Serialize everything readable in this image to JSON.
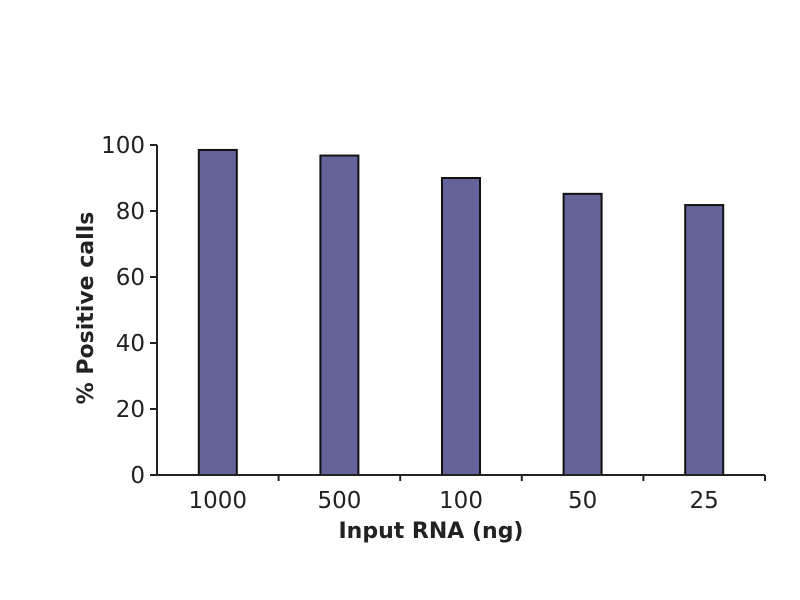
{
  "chart_data": {
    "type": "bar",
    "title": "",
    "xlabel": "Input RNA (ng)",
    "ylabel": "% Positive calls",
    "categories": [
      "1000",
      "500",
      "100",
      "50",
      "25"
    ],
    "values": [
      98.5,
      96.8,
      90.0,
      85.2,
      81.8
    ],
    "ylim": [
      0,
      100
    ],
    "yticks": [
      0,
      20,
      40,
      60,
      80,
      100
    ],
    "ytick_labels": [
      "0",
      "20",
      "40",
      "60",
      "80",
      "100"
    ],
    "grid": false,
    "legend": "none",
    "bar_color": "#64649a"
  }
}
